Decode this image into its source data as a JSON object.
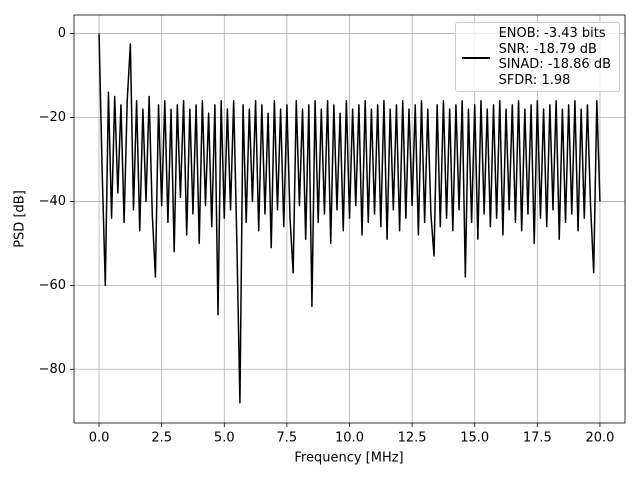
{
  "chart_data": {
    "type": "line",
    "xlabel": "Frequency [MHz]",
    "ylabel": "PSD [dB]",
    "x": [
      0,
      0.125,
      0.25,
      0.375,
      0.5,
      0.625,
      0.75,
      0.875,
      1,
      1.125,
      1.25,
      1.375,
      1.5,
      1.625,
      1.75,
      1.875,
      2,
      2.125,
      2.25,
      2.375,
      2.5,
      2.625,
      2.75,
      2.875,
      3,
      3.125,
      3.25,
      3.375,
      3.5,
      3.625,
      3.75,
      3.875,
      4,
      4.125,
      4.25,
      4.375,
      4.5,
      4.625,
      4.75,
      4.875,
      5,
      5.125,
      5.25,
      5.375,
      5.5,
      5.625,
      5.75,
      5.875,
      6,
      6.125,
      6.25,
      6.375,
      6.5,
      6.625,
      6.75,
      6.875,
      7,
      7.125,
      7.25,
      7.375,
      7.5,
      7.625,
      7.75,
      7.875,
      8,
      8.125,
      8.25,
      8.375,
      8.5,
      8.625,
      8.75,
      8.875,
      9,
      9.125,
      9.25,
      9.375,
      9.5,
      9.625,
      9.75,
      9.875,
      10,
      10.125,
      10.25,
      10.375,
      10.5,
      10.625,
      10.75,
      10.875,
      11,
      11.125,
      11.25,
      11.375,
      11.5,
      11.625,
      11.75,
      11.875,
      12,
      12.125,
      12.25,
      12.375,
      12.5,
      12.625,
      12.75,
      12.875,
      13,
      13.125,
      13.25,
      13.375,
      13.5,
      13.625,
      13.75,
      13.875,
      14,
      14.125,
      14.25,
      14.375,
      14.5,
      14.625,
      14.75,
      14.875,
      15,
      15.125,
      15.25,
      15.375,
      15.5,
      15.625,
      15.75,
      15.875,
      16,
      16.125,
      16.25,
      16.375,
      16.5,
      16.625,
      16.75,
      16.875,
      17,
      17.125,
      17.25,
      17.375,
      17.5,
      17.625,
      17.75,
      17.875,
      18,
      18.125,
      18.25,
      18.375,
      18.5,
      18.625,
      18.75,
      18.875,
      19,
      19.125,
      19.25,
      19.375,
      19.5,
      19.625,
      19.75,
      19.875,
      20
    ],
    "series": [
      {
        "name": "ENOB: -3.43 bits\nSNR: -18.79 dB\nSINAD: -18.86 dB\nSFDR: 1.98",
        "color": "#000000",
        "values": [
          0,
          -33,
          -60,
          -14,
          -44,
          -15,
          -38,
          -17,
          -45,
          -16,
          -2.5,
          -42,
          -16,
          -47,
          -18,
          -40,
          -15,
          -43,
          -58,
          -17,
          -41,
          -16,
          -45,
          -18,
          -52,
          -17,
          -39,
          -16,
          -48,
          -18,
          -43,
          -17,
          -50,
          -16,
          -41,
          -19,
          -46,
          -17,
          -67,
          -16,
          -44,
          -18,
          -42,
          -16,
          -49,
          -88,
          -17,
          -45,
          -18,
          -40,
          -16,
          -47,
          -17,
          -43,
          -19,
          -51,
          -16,
          -42,
          -18,
          -46,
          -17,
          -44,
          -57,
          -16,
          -41,
          -18,
          -49,
          -17,
          -65,
          -16,
          -45,
          -18,
          -43,
          -16,
          -50,
          -17,
          -42,
          -19,
          -47,
          -16,
          -44,
          -18,
          -41,
          -17,
          -48,
          -16,
          -45,
          -18,
          -43,
          -17,
          -46,
          -16,
          -49,
          -18,
          -42,
          -17,
          -47,
          -16,
          -44,
          -18,
          -41,
          -17,
          -48,
          -16,
          -45,
          -18,
          -43,
          -53,
          -17,
          -46,
          -16,
          -44,
          -18,
          -47,
          -17,
          -42,
          -16,
          -58,
          -18,
          -45,
          -17,
          -49,
          -16,
          -43,
          -18,
          -46,
          -17,
          -44,
          -16,
          -48,
          -18,
          -42,
          -17,
          -45,
          -16,
          -47,
          -18,
          -43,
          -17,
          -50,
          -16,
          -44,
          -18,
          -46,
          -17,
          -42,
          -16,
          -49,
          -18,
          -45,
          -17,
          -43,
          -16,
          -47,
          -18,
          -44,
          -17,
          -41,
          -57,
          -16,
          -40
        ]
      }
    ],
    "xlim": [
      -1,
      21
    ],
    "ylim": [
      -92.8,
      4.42
    ],
    "xticks": [
      {
        "value": 0,
        "label": "0.0"
      },
      2.5,
      {
        "value": 5,
        "label": "5.0"
      },
      7.5,
      {
        "value": 10,
        "label": "10.0"
      },
      12.5,
      {
        "value": 15,
        "label": "15.0"
      },
      17.5,
      {
        "value": 20,
        "label": "20.0"
      }
    ],
    "yticks": [
      0,
      {
        "value": -20,
        "label": "−20"
      },
      {
        "value": -40,
        "label": "−40"
      },
      {
        "value": -60,
        "label": "−60"
      },
      {
        "value": -80,
        "label": "−80"
      }
    ],
    "grid": true,
    "legend": "upper right"
  }
}
